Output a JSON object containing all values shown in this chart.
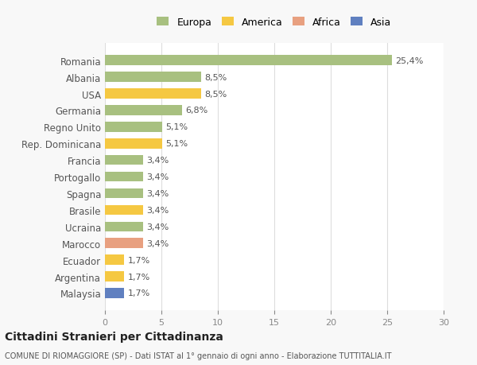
{
  "categories": [
    "Romania",
    "Albania",
    "USA",
    "Germania",
    "Regno Unito",
    "Rep. Dominicana",
    "Francia",
    "Portogallo",
    "Spagna",
    "Brasile",
    "Ucraina",
    "Marocco",
    "Ecuador",
    "Argentina",
    "Malaysia"
  ],
  "values": [
    25.4,
    8.5,
    8.5,
    6.8,
    5.1,
    5.1,
    3.4,
    3.4,
    3.4,
    3.4,
    3.4,
    3.4,
    1.7,
    1.7,
    1.7
  ],
  "labels": [
    "25,4%",
    "8,5%",
    "8,5%",
    "6,8%",
    "5,1%",
    "5,1%",
    "3,4%",
    "3,4%",
    "3,4%",
    "3,4%",
    "3,4%",
    "3,4%",
    "1,7%",
    "1,7%",
    "1,7%"
  ],
  "colors": [
    "#a8c080",
    "#a8c080",
    "#f5c842",
    "#a8c080",
    "#a8c080",
    "#f5c842",
    "#a8c080",
    "#a8c080",
    "#a8c080",
    "#f5c842",
    "#a8c080",
    "#e8a080",
    "#f5c842",
    "#f5c842",
    "#6080c0"
  ],
  "continent": [
    "Europa",
    "Europa",
    "America",
    "Europa",
    "Europa",
    "America",
    "Europa",
    "Europa",
    "Europa",
    "America",
    "Europa",
    "Africa",
    "America",
    "America",
    "Asia"
  ],
  "legend_labels": [
    "Europa",
    "America",
    "Africa",
    "Asia"
  ],
  "legend_colors": [
    "#a8c080",
    "#f5c842",
    "#e8a080",
    "#6080c0"
  ],
  "title": "Cittadini Stranieri per Cittadinanza",
  "subtitle": "COMUNE DI RIOMAGGIORE (SP) - Dati ISTAT al 1° gennaio di ogni anno - Elaborazione TUTTITALIA.IT",
  "xlim": [
    0,
    30
  ],
  "xticks": [
    0,
    5,
    10,
    15,
    20,
    25,
    30
  ],
  "background_color": "#f8f8f8",
  "bar_background": "#ffffff"
}
